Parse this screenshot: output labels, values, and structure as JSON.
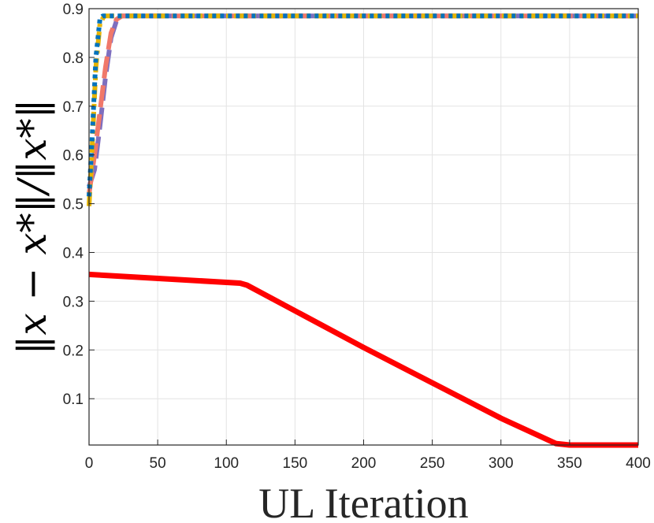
{
  "chart_data": {
    "type": "line",
    "xlabel": "UL Iteration",
    "ylabel": "‖x − x*‖/‖x*‖",
    "xlim": [
      0,
      400
    ],
    "ylim": [
      0.005,
      0.9
    ],
    "xticks": [
      "0",
      "50",
      "100",
      "150",
      "200",
      "250",
      "300",
      "350",
      "400"
    ],
    "yticks": [
      "0.1",
      "0.2",
      "0.3",
      "0.4",
      "0.5",
      "0.6",
      "0.7",
      "0.8",
      "0.9"
    ],
    "grid": true,
    "series": [
      {
        "style": "solid",
        "color": "#ff0000",
        "x": [
          0,
          110,
          115,
          200,
          300,
          340,
          350,
          400
        ],
        "y": [
          0.355,
          0.337,
          0.333,
          0.205,
          0.06,
          0.008,
          0.005,
          0.005
        ]
      },
      {
        "style": "dashed",
        "color": "#7e6fbf",
        "x": [
          0,
          4,
          8,
          12,
          16,
          20,
          24,
          28,
          400
        ],
        "y": [
          0.535,
          0.57,
          0.66,
          0.76,
          0.84,
          0.875,
          0.885,
          0.885,
          0.885
        ]
      },
      {
        "style": "dashed",
        "color": "#f0786a",
        "x": [
          0,
          4,
          8,
          12,
          16,
          20,
          24,
          28,
          400
        ],
        "y": [
          0.52,
          0.6,
          0.69,
          0.78,
          0.85,
          0.878,
          0.885,
          0.885,
          0.885
        ]
      },
      {
        "style": "dashdot",
        "color": "#e6b400",
        "x": [
          0,
          2,
          5,
          8,
          11,
          400
        ],
        "y": [
          0.495,
          0.6,
          0.78,
          0.87,
          0.885,
          0.885
        ]
      },
      {
        "style": "dotted",
        "color": "#0072bd",
        "x": [
          0,
          2,
          5,
          8,
          10,
          400
        ],
        "y": [
          0.515,
          0.62,
          0.8,
          0.88,
          0.885,
          0.885
        ]
      }
    ]
  }
}
